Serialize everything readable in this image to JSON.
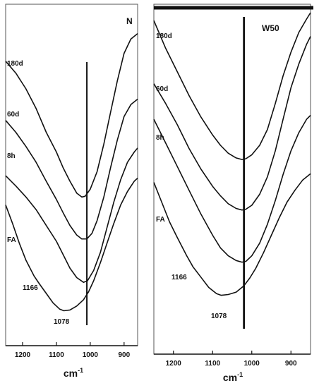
{
  "chart_data": [
    {
      "type": "line",
      "panel_label": "N",
      "xlabel": "cm",
      "xlabel_exponent": "-1",
      "xlim": [
        1250,
        860
      ],
      "x_ticks": [
        1200,
        1100,
        1000,
        900
      ],
      "marker_line_x": 1010,
      "series": [
        {
          "name": "180d",
          "x": [
            1250,
            1220,
            1190,
            1160,
            1130,
            1100,
            1080,
            1060,
            1040,
            1025,
            1015,
            1000,
            980,
            960,
            940,
            920,
            900,
            880,
            860
          ],
          "y": [
            3.2,
            3.05,
            2.85,
            2.6,
            2.3,
            2.05,
            1.85,
            1.68,
            1.53,
            1.48,
            1.49,
            1.58,
            1.8,
            2.15,
            2.55,
            2.95,
            3.3,
            3.48,
            3.55
          ]
        },
        {
          "name": "60d",
          "x": [
            1250,
            1220,
            1190,
            1160,
            1130,
            1100,
            1080,
            1060,
            1040,
            1025,
            1010,
            995,
            980,
            960,
            940,
            920,
            900,
            880,
            860
          ],
          "y": [
            2.45,
            2.3,
            2.12,
            1.92,
            1.68,
            1.45,
            1.28,
            1.12,
            1.0,
            0.95,
            0.95,
            1.02,
            1.18,
            1.48,
            1.85,
            2.2,
            2.5,
            2.65,
            2.72
          ]
        },
        {
          "name": "8h",
          "x": [
            1250,
            1220,
            1190,
            1160,
            1130,
            1100,
            1080,
            1060,
            1040,
            1020,
            1008,
            990,
            970,
            950,
            930,
            910,
            890,
            870,
            860
          ],
          "y": [
            1.75,
            1.62,
            1.48,
            1.32,
            1.12,
            0.92,
            0.75,
            0.58,
            0.46,
            0.4,
            0.42,
            0.55,
            0.78,
            1.1,
            1.42,
            1.7,
            1.92,
            2.05,
            2.1
          ]
        },
        {
          "name": "FA",
          "x": [
            1250,
            1230,
            1210,
            1190,
            1166,
            1150,
            1130,
            1110,
            1090,
            1078,
            1060,
            1040,
            1020,
            1005,
            990,
            970,
            950,
            930,
            910,
            890,
            870,
            860
          ],
          "y": [
            1.38,
            1.15,
            0.9,
            0.68,
            0.48,
            0.38,
            0.26,
            0.14,
            0.06,
            0.04,
            0.05,
            0.1,
            0.18,
            0.28,
            0.42,
            0.65,
            0.9,
            1.15,
            1.38,
            1.55,
            1.68,
            1.72
          ]
        }
      ],
      "annotations": [
        "1166",
        "1078"
      ]
    },
    {
      "type": "line",
      "panel_label": "W50",
      "xlabel": "cm",
      "xlabel_exponent": "-1",
      "xlim": [
        1250,
        850
      ],
      "x_ticks": [
        1200,
        1100,
        1000,
        900
      ],
      "marker_line_x": 1020,
      "series": [
        {
          "name": "180d",
          "x": [
            1250,
            1220,
            1190,
            1160,
            1130,
            1100,
            1080,
            1060,
            1040,
            1025,
            1015,
            1000,
            980,
            960,
            940,
            920,
            900,
            880,
            860,
            850
          ],
          "y": [
            3.6,
            3.25,
            2.95,
            2.65,
            2.38,
            2.15,
            2.02,
            1.92,
            1.86,
            1.84,
            1.85,
            1.9,
            2.02,
            2.22,
            2.55,
            2.9,
            3.2,
            3.45,
            3.62,
            3.7
          ]
        },
        {
          "name": "60d",
          "x": [
            1250,
            1220,
            1190,
            1160,
            1130,
            1100,
            1080,
            1060,
            1040,
            1025,
            1015,
            1000,
            980,
            960,
            940,
            920,
            900,
            880,
            860,
            850
          ],
          "y": [
            2.8,
            2.55,
            2.28,
            1.98,
            1.72,
            1.5,
            1.38,
            1.28,
            1.22,
            1.2,
            1.21,
            1.26,
            1.4,
            1.62,
            1.95,
            2.35,
            2.75,
            3.05,
            3.3,
            3.4
          ]
        },
        {
          "name": "8h",
          "x": [
            1250,
            1220,
            1190,
            1160,
            1130,
            1100,
            1080,
            1060,
            1040,
            1025,
            1015,
            1000,
            980,
            960,
            940,
            920,
            900,
            880,
            860,
            850
          ],
          "y": [
            2.35,
            2.05,
            1.75,
            1.45,
            1.15,
            0.88,
            0.72,
            0.62,
            0.56,
            0.54,
            0.55,
            0.62,
            0.78,
            1.02,
            1.32,
            1.65,
            1.95,
            2.18,
            2.35,
            2.4
          ]
        },
        {
          "name": "FA",
          "x": [
            1250,
            1230,
            1210,
            1190,
            1166,
            1150,
            1130,
            1110,
            1090,
            1078,
            1060,
            1040,
            1020,
            1005,
            990,
            970,
            950,
            930,
            910,
            890,
            870,
            850
          ],
          "y": [
            1.55,
            1.3,
            1.05,
            0.85,
            0.62,
            0.48,
            0.35,
            0.22,
            0.14,
            0.12,
            0.13,
            0.16,
            0.24,
            0.34,
            0.46,
            0.66,
            0.88,
            1.1,
            1.3,
            1.45,
            1.58,
            1.66
          ]
        }
      ],
      "annotations": [
        "1166",
        "1078"
      ]
    }
  ]
}
